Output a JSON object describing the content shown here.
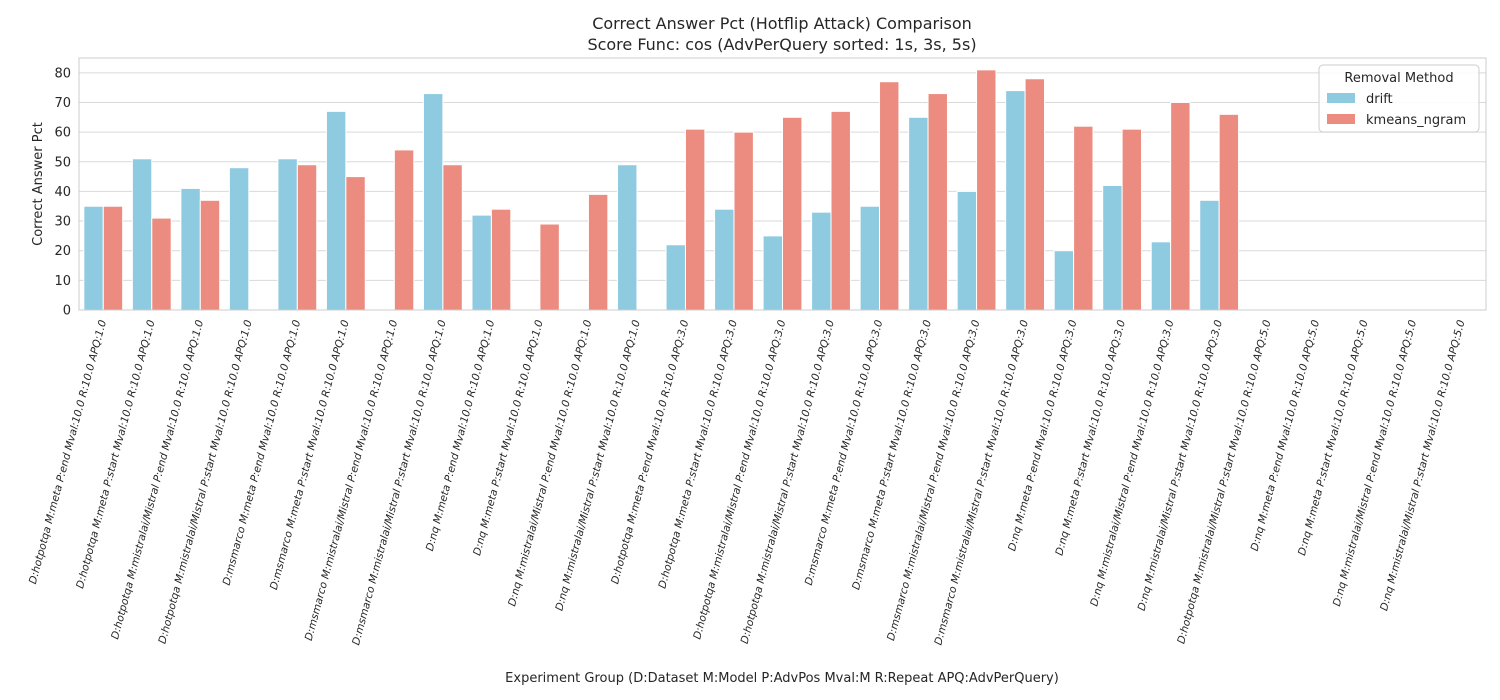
{
  "chart_data": {
    "type": "bar",
    "title": "Correct Answer Pct (Hotflip Attack) Comparison",
    "subtitle": "Score Func: cos (AdvPerQuery sorted: 1s, 3s, 5s)",
    "xlabel": "Experiment Group (D:Dataset M:Model P:AdvPos Mval:M R:Repeat APQ:AdvPerQuery)",
    "ylabel": "Correct Answer Pct",
    "ylim": [
      0,
      85
    ],
    "yticks": [
      0,
      10,
      20,
      30,
      40,
      50,
      60,
      70,
      80
    ],
    "grid": true,
    "legend": {
      "title": "Removal Method",
      "placement": "top-right"
    },
    "categories": [
      "D:hotpotqa M:meta P:end Mval:10.0 R:10.0 APQ:1.0",
      "D:hotpotqa M:meta P:start Mval:10.0 R:10.0 APQ:1.0",
      "D:hotpotqa M:mistralai/Mistral P:end Mval:10.0 R:10.0 APQ:1.0",
      "D:hotpotqa M:mistralai/Mistral P:start Mval:10.0 R:10.0 APQ:1.0",
      "D:msmarco M:meta P:end Mval:10.0 R:10.0 APQ:1.0",
      "D:msmarco M:meta P:start Mval:10.0 R:10.0 APQ:1.0",
      "D:msmarco M:mistralai/Mistral P:end Mval:10.0 R:10.0 APQ:1.0",
      "D:msmarco M:mistralai/Mistral P:start Mval:10.0 R:10.0 APQ:1.0",
      "D:nq M:meta P:end Mval:10.0 R:10.0 APQ:1.0",
      "D:nq M:meta P:start Mval:10.0 R:10.0 APQ:1.0",
      "D:nq M:mistralai/Mistral P:end Mval:10.0 R:10.0 APQ:1.0",
      "D:nq M:mistralai/Mistral P:start Mval:10.0 R:10.0 APQ:1.0",
      "D:hotpotqa M:meta P:end Mval:10.0 R:10.0 APQ:3.0",
      "D:hotpotqa M:meta P:start Mval:10.0 R:10.0 APQ:3.0",
      "D:hotpotqa M:mistralai/Mistral P:end Mval:10.0 R:10.0 APQ:3.0",
      "D:hotpotqa M:mistralai/Mistral P:start Mval:10.0 R:10.0 APQ:3.0",
      "D:msmarco M:meta P:end Mval:10.0 R:10.0 APQ:3.0",
      "D:msmarco M:meta P:start Mval:10.0 R:10.0 APQ:3.0",
      "D:msmarco M:mistralai/Mistral P:end Mval:10.0 R:10.0 APQ:3.0",
      "D:msmarco M:mistralai/Mistral P:start Mval:10.0 R:10.0 APQ:3.0",
      "D:nq M:meta P:end Mval:10.0 R:10.0 APQ:3.0",
      "D:nq M:meta P:start Mval:10.0 R:10.0 APQ:3.0",
      "D:nq M:mistralai/Mistral P:end Mval:10.0 R:10.0 APQ:3.0",
      "D:nq M:mistralai/Mistral P:start Mval:10.0 R:10.0 APQ:3.0",
      "D:hotpotqa M:mistralai/Mistral P:start Mval:10.0 R:10.0 APQ:5.0",
      "D:nq M:meta P:end Mval:10.0 R:10.0 APQ:5.0",
      "D:nq M:meta P:start Mval:10.0 R:10.0 APQ:5.0",
      "D:nq M:mistralai/Mistral P:end Mval:10.0 R:10.0 APQ:5.0",
      "D:nq M:mistralai/Mistral P:start Mval:10.0 R:10.0 APQ:5.0"
    ],
    "series": [
      {
        "name": "drift",
        "color": "#8ecae0",
        "values": [
          35,
          51,
          41,
          48,
          51,
          67,
          null,
          73,
          32,
          null,
          null,
          49,
          22,
          34,
          25,
          33,
          35,
          65,
          40,
          74,
          20,
          42,
          23,
          37,
          null,
          null,
          null,
          null,
          null
        ]
      },
      {
        "name": "kmeans_ngram",
        "color": "#ec8c80",
        "values": [
          35,
          31,
          37,
          null,
          49,
          45,
          54,
          49,
          34,
          29,
          39,
          null,
          61,
          60,
          65,
          67,
          77,
          73,
          81,
          78,
          62,
          61,
          70,
          66,
          null,
          null,
          null,
          null,
          null
        ]
      }
    ]
  }
}
